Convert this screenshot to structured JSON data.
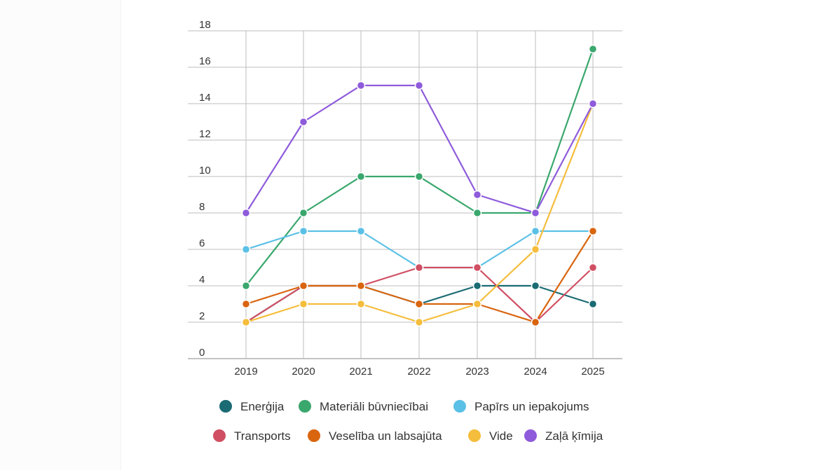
{
  "chart_data": {
    "type": "line",
    "title": "",
    "xlabel": "",
    "ylabel": "",
    "x": [
      "2019",
      "2020",
      "2021",
      "2022",
      "2023",
      "2024",
      "2025"
    ],
    "ylim": [
      0,
      18
    ],
    "yticks": [
      "0",
      "2",
      "4",
      "6",
      "8",
      "10",
      "12",
      "14",
      "16",
      "18"
    ],
    "grid": true,
    "legend_position": "bottom",
    "series": [
      {
        "name": "Enerģija",
        "color": "#1a6b73",
        "values": [
          2,
          4,
          4,
          3,
          4,
          4,
          3
        ]
      },
      {
        "name": "Materiāli būvniecībai",
        "color": "#3aa76d",
        "values": [
          4,
          8,
          10,
          10,
          8,
          8,
          17
        ]
      },
      {
        "name": "Papīrs un iepakojums",
        "color": "#5bc0e6",
        "values": [
          6,
          7,
          7,
          5,
          5,
          7,
          7
        ]
      },
      {
        "name": "Transports",
        "color": "#d04f63",
        "values": [
          2,
          4,
          4,
          5,
          5,
          2,
          5
        ]
      },
      {
        "name": "Veselība un labsajūta",
        "color": "#d9650f",
        "values": [
          3,
          4,
          4,
          3,
          3,
          2,
          7
        ]
      },
      {
        "name": "Vide",
        "color": "#f5bd3c",
        "values": [
          2,
          3,
          3,
          2,
          3,
          6,
          14
        ]
      },
      {
        "name": "Zaļā ķīmija",
        "color": "#8e5bdb",
        "values": [
          8,
          13,
          15,
          15,
          9,
          8,
          14
        ]
      }
    ]
  }
}
